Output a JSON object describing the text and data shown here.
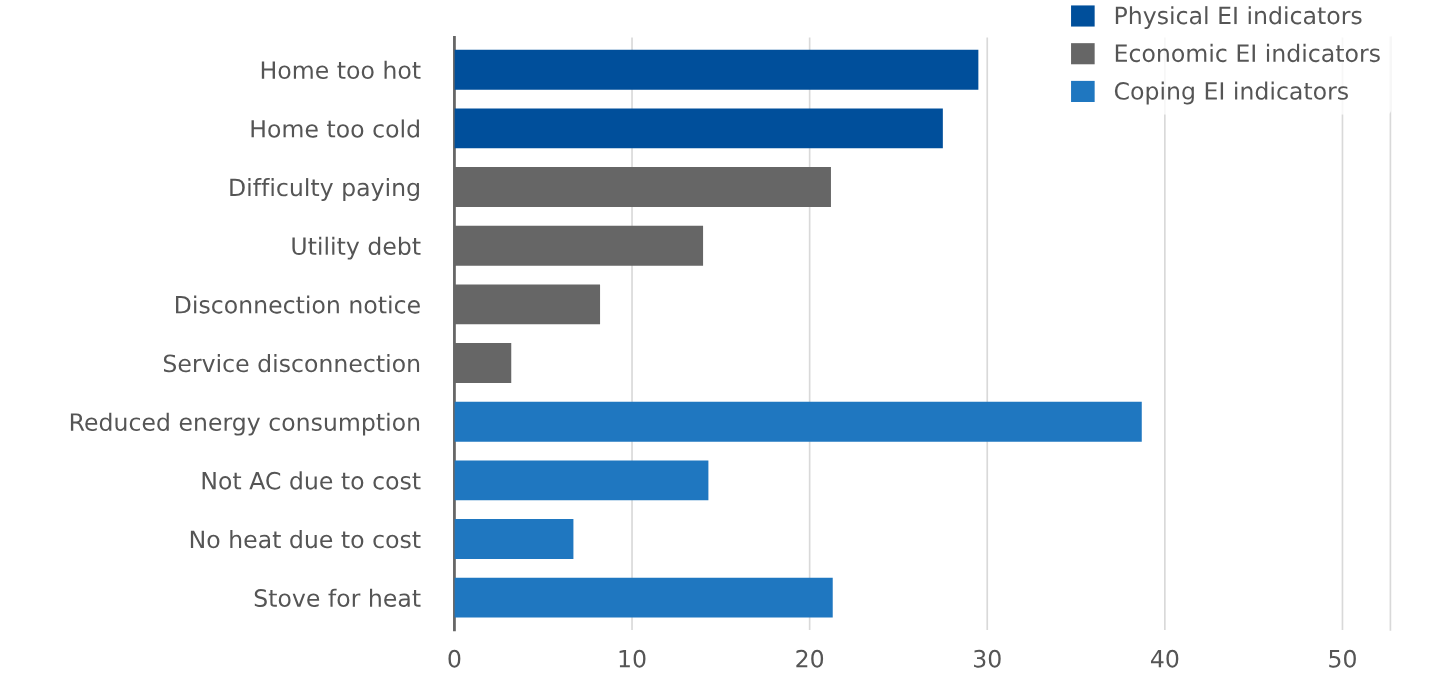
{
  "chart_data": {
    "type": "bar",
    "orientation": "horizontal",
    "categories": [
      "Home too hot",
      "Home too cold",
      "Difficulty paying",
      "Utility debt",
      "Disconnection notice",
      "Service disconnection",
      "Reduced energy consumption",
      "Not AC due to cost",
      "No heat due to cost",
      "Stove for heat"
    ],
    "series": [
      {
        "name": "Physical EI indicators",
        "color": "#004f9b",
        "values": [
          29.5,
          27.5,
          null,
          null,
          null,
          null,
          null,
          null,
          null,
          null
        ]
      },
      {
        "name": "Economic EI indicators",
        "color": "#666666",
        "values": [
          null,
          null,
          21.2,
          14.0,
          8.2,
          3.2,
          null,
          null,
          null,
          null
        ]
      },
      {
        "name": "Coping EI indicators",
        "color": "#1f77c0",
        "values": [
          null,
          null,
          null,
          null,
          null,
          null,
          38.7,
          14.3,
          6.7,
          21.3
        ]
      }
    ],
    "xlim": [
      0,
      52.7
    ],
    "xticks": [
      0,
      10,
      20,
      30,
      40,
      50
    ],
    "grid": "x",
    "legend": "top right"
  }
}
